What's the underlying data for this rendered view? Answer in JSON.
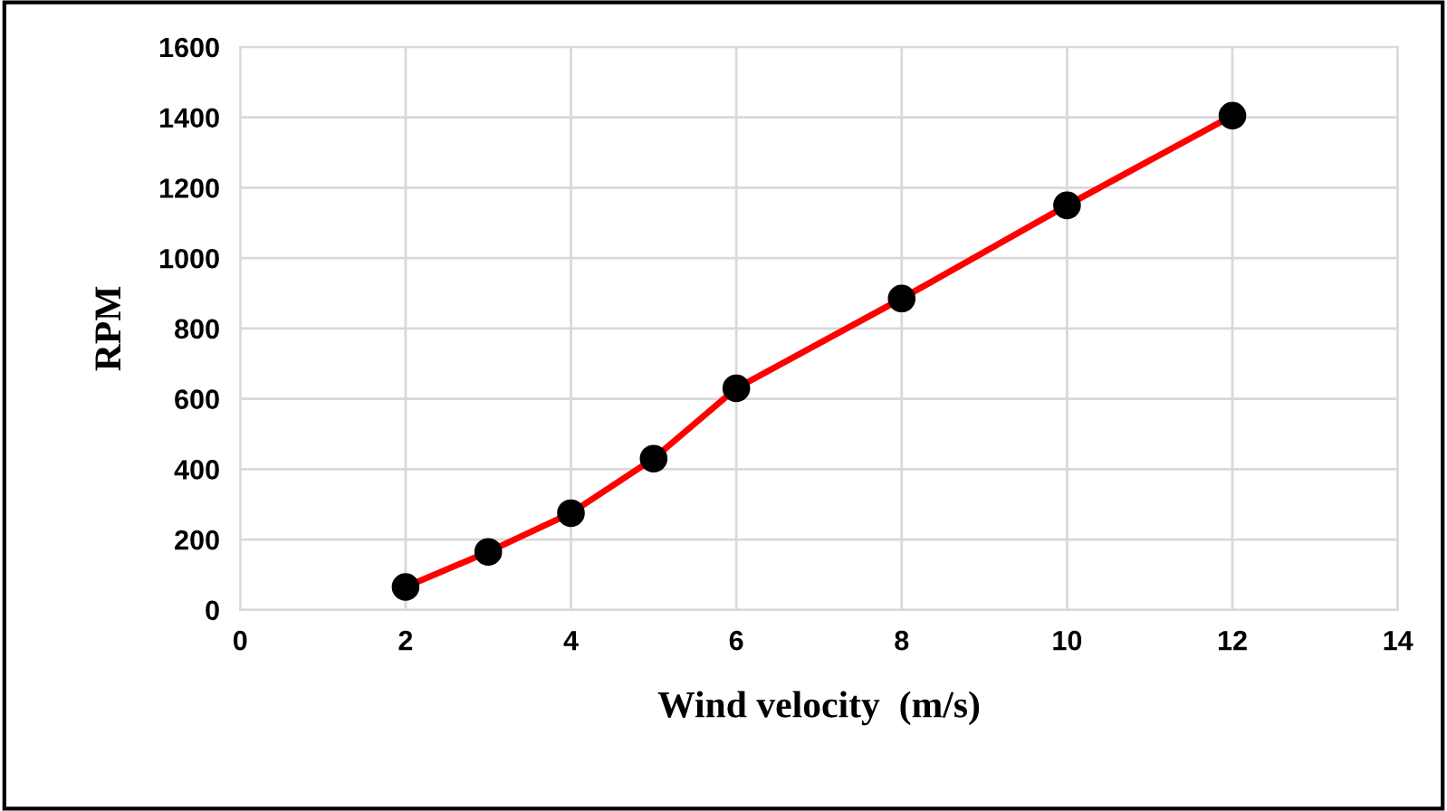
{
  "chart_data": {
    "type": "line",
    "xlabel": "Wind velocity  (m/s)",
    "ylabel": "RPM",
    "x": [
      2,
      3,
      4,
      5,
      6,
      8,
      10,
      12
    ],
    "series": [
      {
        "color": "#ff0000",
        "values": [
          65,
          165,
          275,
          430,
          630,
          885,
          1150,
          1405
        ]
      }
    ],
    "xlim": [
      0,
      14
    ],
    "xticks": [
      0,
      2,
      4,
      6,
      8,
      10,
      12,
      14
    ],
    "ylim": [
      0,
      1600
    ],
    "yticks": [
      0,
      200,
      400,
      600,
      800,
      1000,
      1200,
      1400,
      1600
    ],
    "grid": true,
    "marker": "circle",
    "line_style": "solid"
  }
}
